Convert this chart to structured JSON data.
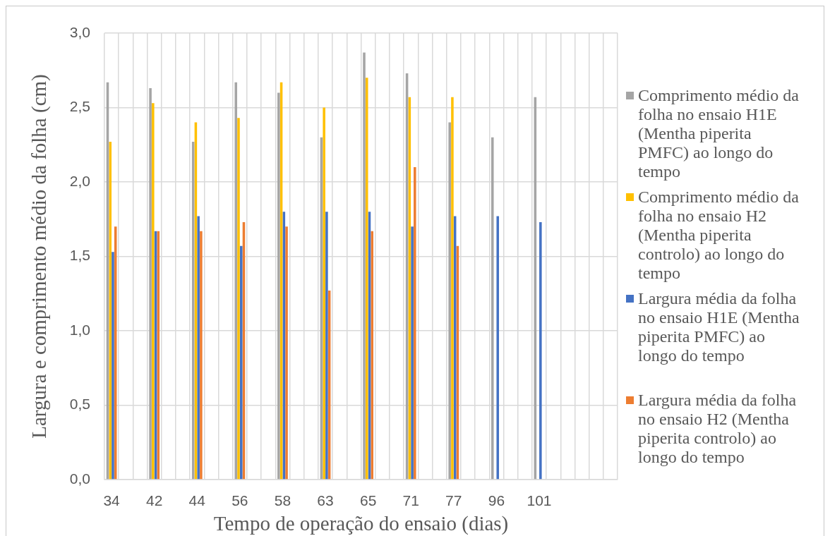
{
  "chart_data": {
    "type": "bar",
    "xlabel": "Tempo de operação do ensaio (dias)",
    "ylabel": "Largura e comprimento médio da folha (cm)",
    "categories": [
      "34",
      null,
      null,
      "42",
      null,
      null,
      "44",
      null,
      null,
      "56",
      null,
      null,
      "58",
      null,
      null,
      "63",
      null,
      null,
      "65",
      null,
      null,
      "71",
      null,
      null,
      "77",
      null,
      null,
      "96",
      null,
      null,
      "101",
      null,
      null,
      null,
      null,
      null
    ],
    "series": [
      {
        "name": "Comprimento médio da folha no ensaio H1E (Mentha piperita PMFC) ao longo do tempo",
        "color": "#a5a5a5",
        "values": [
          2.67,
          null,
          null,
          2.63,
          null,
          null,
          2.27,
          null,
          null,
          2.67,
          null,
          null,
          2.6,
          null,
          null,
          2.3,
          null,
          null,
          2.87,
          null,
          null,
          2.73,
          null,
          null,
          2.4,
          null,
          null,
          2.3,
          null,
          null,
          2.57,
          null,
          null,
          null,
          null,
          null
        ]
      },
      {
        "name": "Comprimento médio da folha no ensaio H2 (Mentha piperita controlo) ao longo do tempo",
        "color": "#ffc000",
        "values": [
          2.27,
          null,
          null,
          2.53,
          null,
          null,
          2.4,
          null,
          null,
          2.43,
          null,
          null,
          2.67,
          null,
          null,
          2.5,
          null,
          null,
          2.7,
          null,
          null,
          2.57,
          null,
          null,
          2.57,
          null,
          null,
          null,
          null,
          null,
          null,
          null,
          null,
          null,
          null,
          null
        ]
      },
      {
        "name": "Largura média da folha no ensaio H1E (Mentha piperita PMFC) ao longo do tempo",
        "color": "#4472c4",
        "values": [
          1.53,
          null,
          null,
          1.67,
          null,
          null,
          1.77,
          null,
          null,
          1.57,
          null,
          null,
          1.8,
          null,
          null,
          1.8,
          null,
          null,
          1.8,
          null,
          null,
          1.7,
          null,
          null,
          1.77,
          null,
          null,
          1.77,
          null,
          null,
          1.73,
          null,
          null,
          null,
          null,
          null
        ]
      },
      {
        "name": "Largura média da folha no ensaio H2 (Mentha piperita controlo) ao longo do tempo",
        "color": "#ed7d31",
        "values": [
          1.7,
          null,
          null,
          1.67,
          null,
          null,
          1.67,
          null,
          null,
          1.73,
          null,
          null,
          1.7,
          null,
          null,
          1.27,
          null,
          null,
          1.67,
          null,
          null,
          2.1,
          null,
          null,
          1.57,
          null,
          null,
          null,
          null,
          null,
          null,
          null,
          null,
          null,
          null,
          null
        ]
      }
    ],
    "ylim": [
      0,
      3
    ],
    "yticks": [
      {
        "value": 0,
        "label": "0,0"
      },
      {
        "value": 0.5,
        "label": "0,5"
      },
      {
        "value": 1,
        "label": "1,0"
      },
      {
        "value": 1.5,
        "label": "1,5"
      },
      {
        "value": 2,
        "label": "2,0"
      },
      {
        "value": 2.5,
        "label": "2,5"
      },
      {
        "value": 3,
        "label": "3,0"
      }
    ],
    "grid": true,
    "legend": "right"
  }
}
